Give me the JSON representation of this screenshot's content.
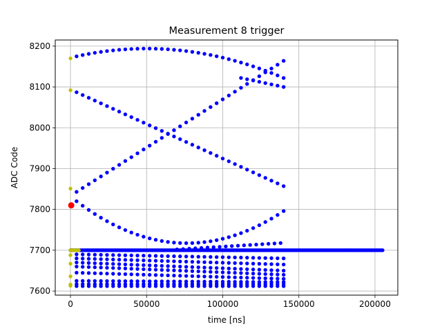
{
  "chart_data": {
    "type": "scatter",
    "title": "Measurement 8 trigger",
    "xlabel": "time [ns]",
    "ylabel": "ADC Code",
    "xlim": [
      -10000,
      215000
    ],
    "ylim": [
      7590,
      8215
    ],
    "xticks": [
      0,
      50000,
      100000,
      150000,
      200000
    ],
    "yticks": [
      7600,
      7700,
      7800,
      7900,
      8000,
      8100,
      8200
    ],
    "grid": true,
    "colors": {
      "data": "#0000ff",
      "pretrigger": "#bfbf00",
      "trigger": "#ff0000",
      "grid": "#b0b0b0"
    },
    "series": [
      {
        "role": "data",
        "groups": [
          {
            "x_start": 4000,
            "x_step": 4000,
            "x_end": 140000,
            "curve": "parabola",
            "y_start": 8175,
            "y_mid": 8193,
            "x_mid": 40000,
            "y_end": 8122
          },
          {
            "x_start": 112000,
            "x_step": 4000,
            "x_end": 140000,
            "curve": "linear",
            "y_start": 8122,
            "y_end": 8100
          },
          {
            "x_start": 4000,
            "x_step": 4000,
            "x_end": 140000,
            "curve": "linear",
            "y_start": 8087,
            "y_end": 7857
          },
          {
            "x_start": 4000,
            "x_step": 4000,
            "x_end": 140000,
            "curve": "linear",
            "y_start": 7843,
            "y_end": 8164
          },
          {
            "x_start": 4000,
            "x_step": 4000,
            "x_end": 140000,
            "curve": "quadratic",
            "y_start": 7820,
            "y_mid": 7730,
            "x_mid": 102000,
            "y_end": 7796
          },
          {
            "x_start": 4000,
            "x_step": 4000,
            "x_end": 140000,
            "curve": "linear",
            "y_start": 7680,
            "y_end": 7665
          },
          {
            "x_start": 4000,
            "x_step": 4000,
            "x_end": 140000,
            "curve": "linear",
            "y_start": 7690,
            "y_end": 7680
          },
          {
            "x_start": 4000,
            "x_step": 4000,
            "x_end": 140000,
            "curve": "linear",
            "y_start": 7670,
            "y_end": 7650
          },
          {
            "x_start": 4000,
            "x_step": 4000,
            "x_end": 140000,
            "curve": "linear",
            "y_start": 7660,
            "y_end": 7640
          },
          {
            "x_start": 4000,
            "x_step": 4000,
            "x_end": 140000,
            "curve": "linear",
            "y_start": 7645,
            "y_end": 7630
          },
          {
            "x_start": 4000,
            "x_step": 4000,
            "x_end": 140000,
            "curve": "linear",
            "y_start": 7625,
            "y_end": 7622
          },
          {
            "x_start": 4000,
            "x_step": 4000,
            "x_end": 140000,
            "curve": "linear",
            "y_start": 7617,
            "y_end": 7617
          },
          {
            "x_start": 4000,
            "x_step": 4000,
            "x_end": 140000,
            "curve": "linear",
            "y_start": 7612,
            "y_end": 7612
          },
          {
            "x_start": 70000,
            "x_step": 4000,
            "x_end": 140000,
            "curve": "linear",
            "y_start": 7702,
            "y_end": 7718
          },
          {
            "x_start": 0,
            "x_step": 1000,
            "x_end": 205000,
            "curve": "linear",
            "y_start": 7700,
            "y_end": 7700
          }
        ]
      },
      {
        "role": "pretrigger",
        "points": [
          [
            0,
            8170
          ],
          [
            0,
            8092
          ],
          [
            0,
            7851
          ],
          [
            0,
            7700
          ],
          [
            0,
            7688
          ],
          [
            0,
            7667
          ],
          [
            0,
            7636
          ],
          [
            0,
            7616
          ],
          [
            0,
            7613
          ],
          [
            1500,
            7700
          ],
          [
            2500,
            7700
          ],
          [
            3500,
            7700
          ],
          [
            4500,
            7700
          ],
          [
            5500,
            7700
          ]
        ]
      },
      {
        "role": "trigger",
        "points": [
          [
            500,
            7810
          ]
        ]
      }
    ]
  }
}
